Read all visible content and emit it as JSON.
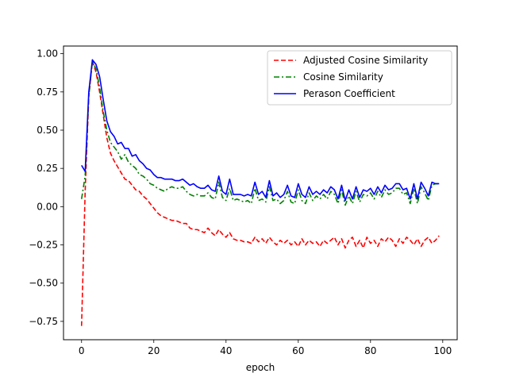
{
  "chart_data": {
    "type": "line",
    "title": "",
    "xlabel": "epoch",
    "ylabel": "",
    "xlim": [
      -5,
      104
    ],
    "ylim": [
      -0.87,
      1.05
    ],
    "xticks": [
      0,
      20,
      40,
      60,
      80,
      100
    ],
    "yticks": [
      -0.75,
      -0.5,
      -0.25,
      0.0,
      0.25,
      0.5,
      0.75,
      1.0
    ],
    "xtick_labels": [
      "0",
      "20",
      "40",
      "60",
      "80",
      "100"
    ],
    "ytick_labels": [
      "−0.75",
      "−0.50",
      "−0.25",
      "0.00",
      "0.25",
      "0.50",
      "0.75",
      "1.00"
    ],
    "grid": false,
    "legend_position": "top-right",
    "series": [
      {
        "name": "Adjusted Cosine Similarity",
        "color": "#ff0000",
        "style": "dashed",
        "x": [
          0,
          1,
          2,
          3,
          4,
          5,
          6,
          7,
          8,
          9,
          10,
          11,
          12,
          13,
          14,
          15,
          16,
          17,
          18,
          19,
          20,
          21,
          22,
          23,
          24,
          25,
          26,
          27,
          28,
          29,
          30,
          31,
          32,
          33,
          34,
          35,
          36,
          37,
          38,
          39,
          40,
          41,
          42,
          43,
          44,
          45,
          46,
          47,
          48,
          49,
          50,
          51,
          52,
          53,
          54,
          55,
          56,
          57,
          58,
          59,
          60,
          61,
          62,
          63,
          64,
          65,
          66,
          67,
          68,
          69,
          70,
          71,
          72,
          73,
          74,
          75,
          76,
          77,
          78,
          79,
          80,
          81,
          82,
          83,
          84,
          85,
          86,
          87,
          88,
          89,
          90,
          91,
          92,
          93,
          94,
          95,
          96,
          97,
          98,
          99
        ],
        "y": [
          -0.78,
          0.1,
          0.72,
          0.95,
          0.88,
          0.75,
          0.6,
          0.45,
          0.35,
          0.3,
          0.26,
          0.22,
          0.18,
          0.17,
          0.14,
          0.11,
          0.1,
          0.07,
          0.05,
          0.02,
          -0.01,
          -0.04,
          -0.06,
          -0.07,
          -0.08,
          -0.09,
          -0.09,
          -0.1,
          -0.11,
          -0.11,
          -0.14,
          -0.15,
          -0.15,
          -0.16,
          -0.17,
          -0.14,
          -0.17,
          -0.19,
          -0.15,
          -0.18,
          -0.2,
          -0.17,
          -0.21,
          -0.22,
          -0.22,
          -0.23,
          -0.23,
          -0.24,
          -0.2,
          -0.23,
          -0.21,
          -0.24,
          -0.2,
          -0.23,
          -0.25,
          -0.22,
          -0.24,
          -0.22,
          -0.25,
          -0.23,
          -0.26,
          -0.21,
          -0.25,
          -0.22,
          -0.24,
          -0.23,
          -0.26,
          -0.22,
          -0.24,
          -0.22,
          -0.2,
          -0.25,
          -0.21,
          -0.27,
          -0.22,
          -0.2,
          -0.26,
          -0.22,
          -0.27,
          -0.2,
          -0.24,
          -0.22,
          -0.26,
          -0.21,
          -0.23,
          -0.2,
          -0.22,
          -0.26,
          -0.21,
          -0.24,
          -0.2,
          -0.22,
          -0.25,
          -0.21,
          -0.26,
          -0.22,
          -0.2,
          -0.24,
          -0.22,
          -0.19
        ]
      },
      {
        "name": "Cosine Similarity",
        "color": "#008000",
        "style": "dashdot",
        "x": [
          0,
          1,
          2,
          3,
          4,
          5,
          6,
          7,
          8,
          9,
          10,
          11,
          12,
          13,
          14,
          15,
          16,
          17,
          18,
          19,
          20,
          21,
          22,
          23,
          24,
          25,
          26,
          27,
          28,
          29,
          30,
          31,
          32,
          33,
          34,
          35,
          36,
          37,
          38,
          39,
          40,
          41,
          42,
          43,
          44,
          45,
          46,
          47,
          48,
          49,
          50,
          51,
          52,
          53,
          54,
          55,
          56,
          57,
          58,
          59,
          60,
          61,
          62,
          63,
          64,
          65,
          66,
          67,
          68,
          69,
          70,
          71,
          72,
          73,
          74,
          75,
          76,
          77,
          78,
          79,
          80,
          81,
          82,
          83,
          84,
          85,
          86,
          87,
          88,
          89,
          90,
          91,
          92,
          93,
          94,
          95,
          96,
          97,
          98,
          99
        ],
        "y": [
          0.05,
          0.2,
          0.72,
          0.95,
          0.9,
          0.78,
          0.62,
          0.5,
          0.42,
          0.39,
          0.36,
          0.31,
          0.34,
          0.29,
          0.27,
          0.25,
          0.21,
          0.2,
          0.18,
          0.15,
          0.14,
          0.12,
          0.11,
          0.1,
          0.12,
          0.13,
          0.12,
          0.12,
          0.13,
          0.1,
          0.08,
          0.07,
          0.08,
          0.07,
          0.07,
          0.09,
          0.06,
          0.05,
          0.16,
          0.06,
          0.04,
          0.12,
          0.04,
          0.05,
          0.04,
          0.03,
          0.04,
          0.02,
          0.12,
          0.04,
          0.05,
          0.03,
          0.13,
          0.04,
          0.05,
          0.02,
          0.04,
          0.1,
          0.03,
          0.02,
          0.11,
          0.04,
          0.02,
          0.09,
          0.04,
          0.07,
          0.05,
          0.08,
          0.05,
          0.1,
          0.08,
          0.02,
          0.11,
          0.01,
          0.07,
          0.02,
          0.1,
          0.03,
          0.08,
          0.07,
          0.09,
          0.05,
          0.1,
          0.06,
          0.11,
          0.08,
          0.09,
          0.12,
          0.12,
          0.08,
          0.09,
          0.02,
          0.12,
          0.02,
          0.13,
          0.09,
          0.04,
          0.14,
          0.15,
          0.15
        ]
      },
      {
        "name": "Perason Coefficient",
        "color": "#0000ff",
        "style": "solid",
        "x": [
          0,
          1,
          2,
          3,
          4,
          5,
          6,
          7,
          8,
          9,
          10,
          11,
          12,
          13,
          14,
          15,
          16,
          17,
          18,
          19,
          20,
          21,
          22,
          23,
          24,
          25,
          26,
          27,
          28,
          29,
          30,
          31,
          32,
          33,
          34,
          35,
          36,
          37,
          38,
          39,
          40,
          41,
          42,
          43,
          44,
          45,
          46,
          47,
          48,
          49,
          50,
          51,
          52,
          53,
          54,
          55,
          56,
          57,
          58,
          59,
          60,
          61,
          62,
          63,
          64,
          65,
          66,
          67,
          68,
          69,
          70,
          71,
          72,
          73,
          74,
          75,
          76,
          77,
          78,
          79,
          80,
          81,
          82,
          83,
          84,
          85,
          86,
          87,
          88,
          89,
          90,
          91,
          92,
          93,
          94,
          95,
          96,
          97,
          98,
          99
        ],
        "y": [
          0.27,
          0.23,
          0.75,
          0.96,
          0.93,
          0.85,
          0.7,
          0.56,
          0.49,
          0.46,
          0.41,
          0.42,
          0.38,
          0.38,
          0.33,
          0.34,
          0.3,
          0.28,
          0.25,
          0.24,
          0.21,
          0.19,
          0.19,
          0.18,
          0.18,
          0.18,
          0.17,
          0.17,
          0.18,
          0.16,
          0.14,
          0.15,
          0.13,
          0.12,
          0.12,
          0.14,
          0.11,
          0.1,
          0.2,
          0.1,
          0.08,
          0.18,
          0.08,
          0.08,
          0.08,
          0.07,
          0.08,
          0.07,
          0.16,
          0.08,
          0.1,
          0.06,
          0.17,
          0.07,
          0.09,
          0.06,
          0.08,
          0.14,
          0.07,
          0.06,
          0.15,
          0.08,
          0.06,
          0.13,
          0.08,
          0.1,
          0.08,
          0.11,
          0.09,
          0.13,
          0.11,
          0.05,
          0.14,
          0.04,
          0.11,
          0.05,
          0.13,
          0.06,
          0.11,
          0.1,
          0.12,
          0.08,
          0.13,
          0.09,
          0.14,
          0.11,
          0.12,
          0.15,
          0.15,
          0.11,
          0.12,
          0.05,
          0.15,
          0.05,
          0.16,
          0.12,
          0.07,
          0.16,
          0.15,
          0.15
        ]
      }
    ]
  }
}
